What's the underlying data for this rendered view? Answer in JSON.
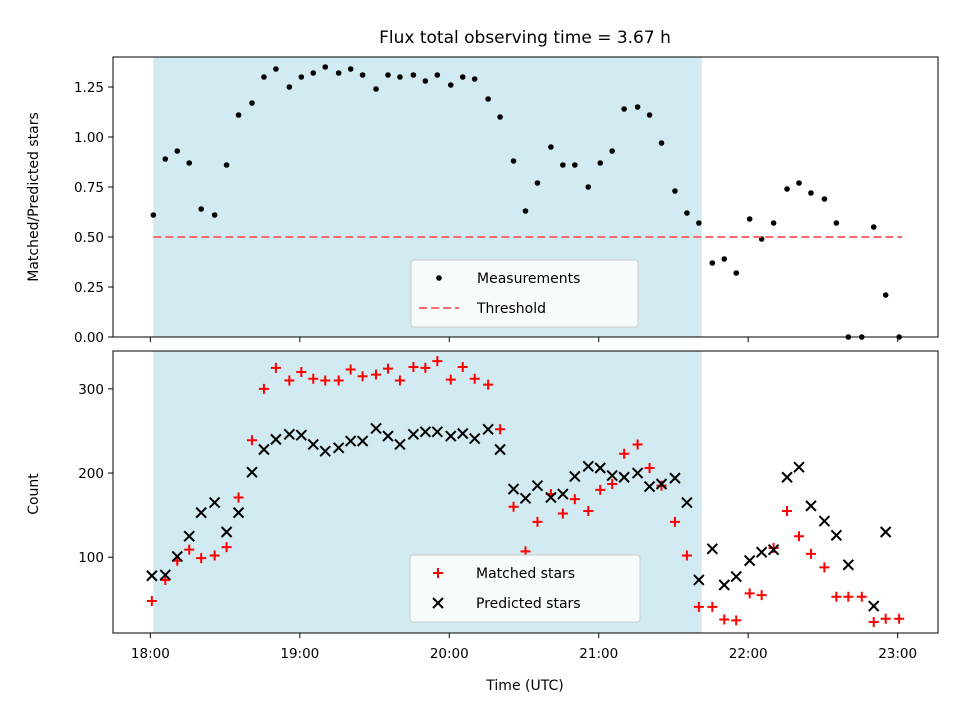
{
  "chart_data": {
    "type": "scatter",
    "title": "Flux total observing time = 3.67 h",
    "xlabel": "Time (UTC)",
    "x_ticks": [
      "18:00",
      "19:00",
      "20:00",
      "21:00",
      "22:00",
      "23:00"
    ],
    "x_range_hours": [
      17.75,
      23.27
    ],
    "shaded_interval_hours": [
      18.02,
      21.69
    ],
    "colors": {
      "shade": "#add8e6",
      "measurements": "#000000",
      "threshold": "#ff6a6a",
      "matched": "#ff0000",
      "predicted": "#000000"
    },
    "panels": [
      {
        "ylabel": "Matched/Predicted stars",
        "ylim": [
          0,
          1.4
        ],
        "y_ticks": [
          "0.00",
          "0.25",
          "0.50",
          "0.75",
          "1.00",
          "1.25"
        ],
        "legend": {
          "location": "lower center",
          "entries": [
            "Measurements",
            "Threshold"
          ]
        },
        "series": [
          {
            "name": "Measurements",
            "marker": "dot",
            "x": [
              18.02,
              18.1,
              18.18,
              18.26,
              18.34,
              18.43,
              18.51,
              18.59,
              18.68,
              18.76,
              18.84,
              18.93,
              19.01,
              19.09,
              19.17,
              19.26,
              19.34,
              19.42,
              19.51,
              19.59,
              19.67,
              19.76,
              19.84,
              19.92,
              20.01,
              20.09,
              20.17,
              20.26,
              20.34,
              20.43,
              20.51,
              20.59,
              20.68,
              20.76,
              20.84,
              20.93,
              21.01,
              21.09,
              21.17,
              21.26,
              21.34,
              21.42,
              21.51,
              21.59,
              21.67,
              21.76,
              21.84,
              21.92,
              22.01,
              22.09,
              22.17,
              22.26,
              22.34,
              22.42,
              22.51,
              22.59,
              22.67,
              22.76,
              22.84,
              22.92,
              23.01
            ],
            "y": [
              0.61,
              0.89,
              0.93,
              0.87,
              0.64,
              0.61,
              0.86,
              1.11,
              1.17,
              1.3,
              1.34,
              1.25,
              1.3,
              1.32,
              1.35,
              1.32,
              1.34,
              1.31,
              1.24,
              1.31,
              1.3,
              1.31,
              1.28,
              1.31,
              1.26,
              1.3,
              1.29,
              1.19,
              1.1,
              0.88,
              0.63,
              0.77,
              0.95,
              0.86,
              0.86,
              0.75,
              0.87,
              0.93,
              1.14,
              1.15,
              1.11,
              0.97,
              0.73,
              0.62,
              0.57,
              0.37,
              0.39,
              0.32,
              0.59,
              0.49,
              0.57,
              0.74,
              0.77,
              0.72,
              0.69,
              0.57,
              0.0,
              0.0,
              0.55,
              0.21,
              0.0
            ]
          },
          {
            "name": "Threshold",
            "marker": "dashed-line",
            "x": [
              18.02,
              23.03
            ],
            "y": [
              0.5,
              0.5
            ]
          }
        ]
      },
      {
        "ylabel": "Count",
        "ylim": [
          10,
          345
        ],
        "y_ticks": [
          "100",
          "200",
          "300"
        ],
        "legend": {
          "location": "lower center",
          "entries": [
            "Matched stars",
            "Predicted stars"
          ]
        },
        "series": [
          {
            "name": "Matched stars",
            "marker": "plus",
            "x": [
              18.01,
              18.1,
              18.18,
              18.26,
              18.34,
              18.43,
              18.51,
              18.59,
              18.68,
              18.76,
              18.84,
              18.93,
              19.01,
              19.09,
              19.17,
              19.26,
              19.34,
              19.42,
              19.51,
              19.59,
              19.67,
              19.76,
              19.84,
              19.92,
              20.01,
              20.09,
              20.17,
              20.26,
              20.34,
              20.43,
              20.51,
              20.59,
              20.68,
              20.76,
              20.84,
              20.93,
              21.01,
              21.09,
              21.17,
              21.26,
              21.34,
              21.42,
              21.51,
              21.59,
              21.67,
              21.76,
              21.84,
              21.92,
              22.01,
              22.09,
              22.17,
              22.26,
              22.34,
              22.42,
              22.51,
              22.59,
              22.67,
              22.76,
              22.84,
              22.92,
              23.01
            ],
            "y": [
              48,
              73,
              96,
              109,
              99,
              102,
              112,
              171,
              239,
              300,
              325,
              310,
              320,
              312,
              310,
              310,
              323,
              315,
              317,
              324,
              310,
              326,
              325,
              333,
              311,
              326,
              312,
              305,
              252,
              160,
              107,
              142,
              175,
              152,
              169,
              155,
              180,
              187,
              223,
              234,
              206,
              185,
              142,
              102,
              41,
              41,
              26,
              25,
              57,
              55,
              111,
              155,
              125,
              104,
              88,
              53,
              53,
              53,
              23,
              27,
              27
            ]
          },
          {
            "name": "Predicted stars",
            "marker": "x",
            "x": [
              18.01,
              18.1,
              18.18,
              18.26,
              18.34,
              18.43,
              18.51,
              18.59,
              18.68,
              18.76,
              18.84,
              18.93,
              19.01,
              19.09,
              19.17,
              19.26,
              19.34,
              19.42,
              19.51,
              19.59,
              19.67,
              19.76,
              19.84,
              19.92,
              20.01,
              20.09,
              20.17,
              20.26,
              20.34,
              20.43,
              20.51,
              20.59,
              20.68,
              20.76,
              20.84,
              20.93,
              21.01,
              21.09,
              21.17,
              21.26,
              21.34,
              21.42,
              21.51,
              21.59,
              21.67,
              21.76,
              21.84,
              21.92,
              22.01,
              22.09,
              22.17,
              22.26,
              22.34,
              22.42,
              22.51,
              22.59,
              22.67,
              22.76,
              22.84,
              22.92,
              23.01
            ],
            "y": [
              78,
              79,
              101,
              125,
              153,
              165,
              130,
              153,
              201,
              228,
              240,
              246,
              245,
              234,
              226,
              230,
              238,
              238,
              253,
              244,
              234,
              246,
              249,
              249,
              244,
              247,
              241,
              252,
              228,
              181,
              170,
              185,
              171,
              175,
              196,
              208,
              206,
              197,
              195,
              200,
              184,
              187,
              194,
              165,
              73,
              110,
              67,
              77,
              96,
              106,
              109,
              195,
              207,
              161,
              143,
              126,
              91,
              null,
              42,
              130,
              null
            ]
          }
        ]
      }
    ]
  }
}
